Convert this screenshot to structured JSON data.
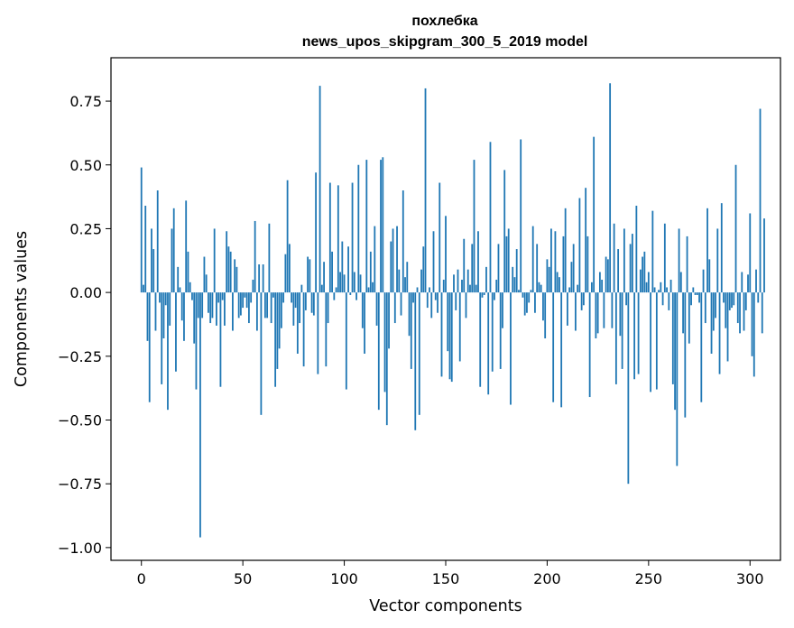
{
  "chart_data": {
    "type": "bar",
    "title": "похлебка",
    "subtitle": "news_upos_skipgram_300_5_2019 model",
    "xlabel": "Vector components",
    "ylabel": "Components values",
    "xlim": [
      -15,
      315
    ],
    "ylim": [
      -1.05,
      0.92
    ],
    "xticks": [
      0,
      50,
      100,
      150,
      200,
      250,
      300
    ],
    "yticks": [
      -1.0,
      -0.75,
      -0.5,
      -0.25,
      0.0,
      0.25,
      0.5,
      0.75
    ],
    "xtick_labels": [
      "0",
      "50",
      "100",
      "150",
      "200",
      "250",
      "300"
    ],
    "ytick_labels": [
      "−1.00",
      "−0.75",
      "−0.50",
      "−0.25",
      "0.00",
      "0.25",
      "0.50",
      "0.75"
    ],
    "bar_color": "#1f77b4",
    "grid": false,
    "values": [
      0.49,
      0.03,
      0.34,
      -0.19,
      -0.43,
      0.25,
      0.17,
      -0.15,
      0.4,
      -0.04,
      -0.36,
      -0.18,
      -0.05,
      -0.46,
      -0.13,
      0.25,
      0.33,
      -0.31,
      0.1,
      0.02,
      -0.11,
      -0.19,
      0.36,
      0.16,
      0.04,
      -0.03,
      -0.2,
      -0.38,
      -0.1,
      -0.96,
      -0.1,
      0.14,
      0.07,
      -0.08,
      -0.12,
      -0.1,
      0.25,
      -0.13,
      -0.04,
      -0.37,
      -0.03,
      -0.13,
      0.24,
      0.18,
      0.16,
      -0.15,
      0.13,
      0.1,
      -0.1,
      -0.09,
      -0.06,
      -0.02,
      -0.06,
      -0.12,
      -0.04,
      0.05,
      0.28,
      -0.15,
      0.11,
      -0.48,
      0.11,
      -0.1,
      -0.1,
      0.27,
      -0.12,
      -0.02,
      -0.37,
      -0.3,
      -0.22,
      -0.14,
      -0.04,
      0.15,
      0.44,
      0.19,
      -0.04,
      -0.13,
      -0.06,
      -0.24,
      -0.12,
      0.03,
      -0.29,
      -0.07,
      0.14,
      0.13,
      -0.08,
      -0.09,
      0.47,
      -0.32,
      0.81,
      0.03,
      0.12,
      -0.29,
      -0.12,
      0.43,
      0.16,
      -0.03,
      0.02,
      0.42,
      0.08,
      0.2,
      0.07,
      -0.38,
      0.18,
      -0.01,
      0.43,
      0.08,
      -0.03,
      0.5,
      0.07,
      -0.14,
      -0.24,
      0.52,
      0.02,
      0.16,
      0.04,
      0.26,
      -0.13,
      -0.46,
      0.52,
      0.53,
      -0.39,
      -0.52,
      -0.22,
      0.2,
      0.25,
      -0.12,
      0.26,
      0.09,
      -0.09,
      0.4,
      0.06,
      0.12,
      -0.17,
      -0.3,
      -0.04,
      -0.54,
      0.02,
      -0.48,
      0.09,
      0.18,
      0.8,
      -0.06,
      0.02,
      -0.1,
      0.24,
      -0.03,
      -0.08,
      0.43,
      -0.33,
      0.05,
      0.3,
      -0.23,
      -0.34,
      -0.35,
      0.07,
      -0.07,
      0.09,
      -0.27,
      0.05,
      0.21,
      -0.1,
      0.09,
      0.03,
      0.19,
      0.52,
      0.03,
      0.24,
      -0.37,
      -0.02,
      -0.01,
      0.1,
      -0.4,
      0.59,
      -0.31,
      -0.03,
      0.05,
      0.19,
      -0.3,
      -0.14,
      0.48,
      0.22,
      0.25,
      -0.44,
      0.1,
      0.06,
      0.17,
      0.01,
      0.6,
      -0.02,
      -0.09,
      -0.08,
      -0.04,
      0.01,
      0.26,
      -0.08,
      0.19,
      0.04,
      0.03,
      -0.11,
      -0.18,
      0.13,
      0.1,
      0.25,
      -0.43,
      0.24,
      0.08,
      0.06,
      -0.45,
      0.22,
      0.33,
      -0.13,
      0.02,
      0.12,
      0.19,
      -0.15,
      0.03,
      0.37,
      -0.07,
      -0.05,
      0.41,
      0.22,
      -0.41,
      0.04,
      0.61,
      -0.18,
      -0.16,
      0.08,
      0.05,
      -0.14,
      0.14,
      0.13,
      0.82,
      -0.14,
      0.27,
      -0.36,
      0.17,
      -0.17,
      -0.3,
      0.25,
      -0.05,
      -0.75,
      0.19,
      0.23,
      -0.34,
      0.34,
      -0.32,
      0.09,
      0.14,
      0.16,
      0.04,
      0.08,
      -0.39,
      0.32,
      0.02,
      -0.38,
      0.01,
      0.04,
      -0.05,
      0.27,
      0.02,
      -0.07,
      0.05,
      -0.36,
      -0.46,
      -0.68,
      0.25,
      0.08,
      -0.16,
      -0.49,
      0.22,
      -0.2,
      -0.05,
      0.02,
      -0.01,
      -0.01,
      -0.04,
      -0.43,
      0.09,
      -0.12,
      0.33,
      0.13,
      -0.24,
      -0.15,
      -0.1,
      0.25,
      -0.32,
      0.35,
      -0.04,
      -0.14,
      -0.27,
      -0.07,
      -0.06,
      -0.05,
      0.5,
      -0.12,
      -0.16,
      0.08,
      -0.15,
      -0.07,
      0.07,
      0.31,
      -0.25,
      -0.33,
      0.09,
      -0.04,
      0.72,
      -0.16,
      0.29
    ]
  }
}
